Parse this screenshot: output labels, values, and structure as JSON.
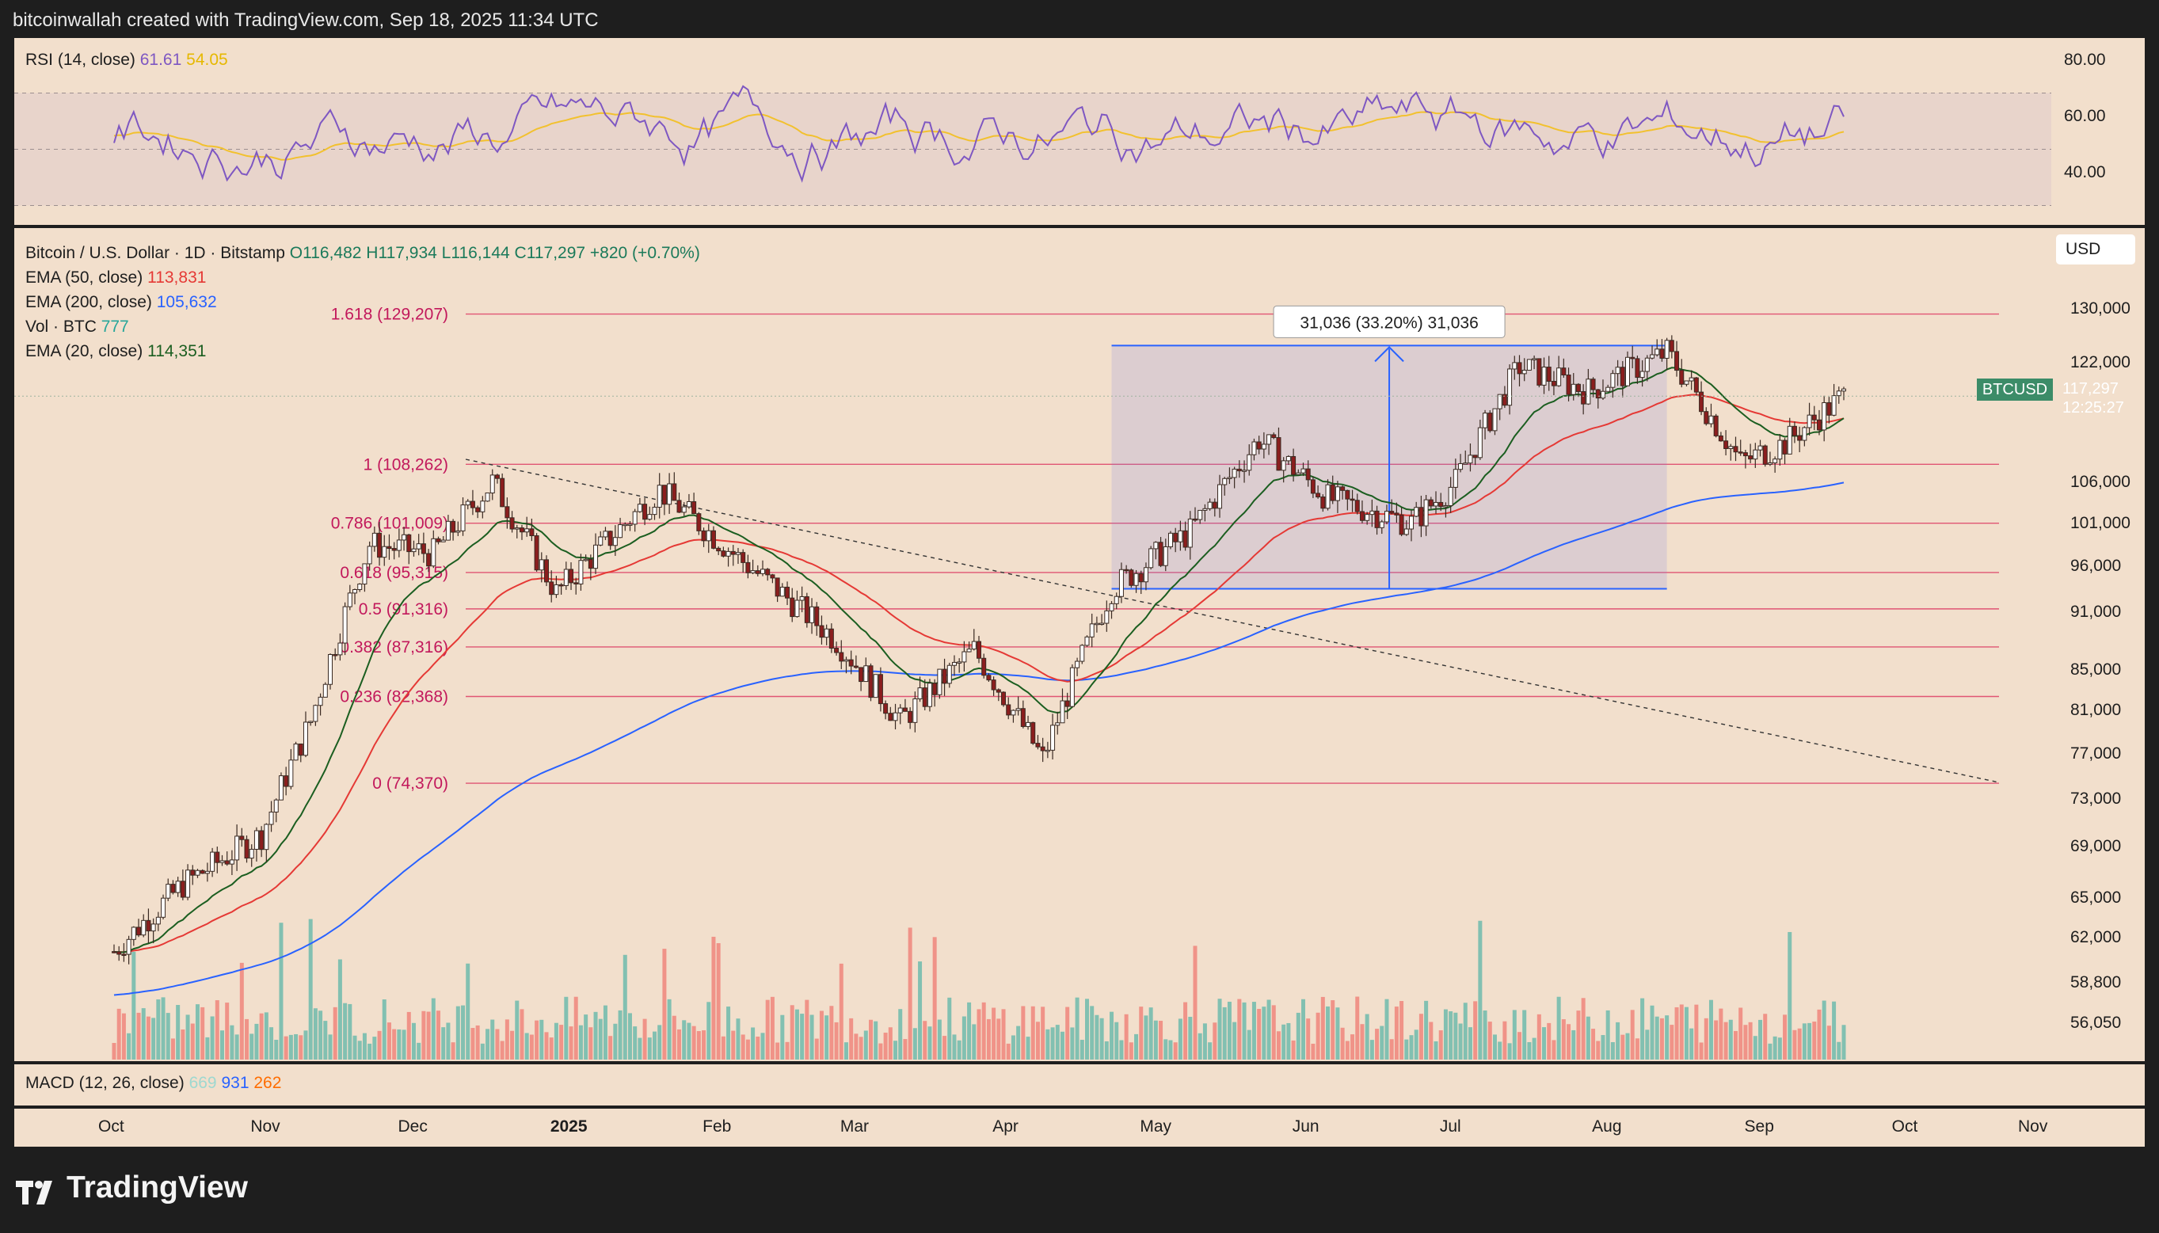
{
  "header": {
    "text": "bitcoinwallah created with TradingView.com, Sep 18, 2025 11:34 UTC"
  },
  "rsi": {
    "title": "RSI (14, close)",
    "value": "61.61",
    "ma_value": "54.05",
    "ticks": [
      "80.00",
      "60.00",
      "40.00"
    ]
  },
  "legend": {
    "symbol": "Bitcoin / U.S. Dollar · 1D · Bitstamp",
    "open": "O116,482",
    "high": "H117,934",
    "low": "L116,144",
    "close": "C117,297",
    "change": "+820 (+0.70%)",
    "ema50_label": "EMA (50, close)",
    "ema50_value": "113,831",
    "ema200_label": "EMA (200, close)",
    "ema200_value": "105,632",
    "vol_label": "Vol · BTC",
    "vol_value": "777",
    "ema20_label": "EMA (20, close)",
    "ema20_value": "114,351"
  },
  "currency_button": "USD",
  "price_tag": {
    "symbol": "BTCUSD",
    "price": "117,297",
    "countdown": "12:25:27"
  },
  "measure_label": "31,036 (33.20%) 31,036",
  "macd": {
    "title": "MACD (12, 26, close)",
    "v1": "669",
    "v2": "931",
    "v3": "262"
  },
  "time_axis": [
    "Oct",
    "Nov",
    "Dec",
    "2025",
    "Feb",
    "Mar",
    "Apr",
    "May",
    "Jun",
    "Jul",
    "Aug",
    "Sep",
    "Oct",
    "Nov"
  ],
  "logo_text": "TradingView",
  "colors": {
    "background": "#f2dfcc",
    "ema20": "#1b5e20",
    "ema50": "#e53935",
    "ema200": "#2962ff",
    "rsi": "#7e57c2",
    "rsi_ma": "#f2c12e",
    "up": "#26a69a",
    "down": "#ef5350",
    "fib": "#e05573"
  },
  "chart_data": {
    "type": "candlestick",
    "y_axis_ticks": [
      "130,000",
      "122,000",
      "106,000",
      "101,000",
      "96,000",
      "91,000",
      "85,000",
      "81,000",
      "77,000",
      "73,000",
      "69,000",
      "65,000",
      "62,000",
      "58,800",
      "56,050"
    ],
    "ylim": [
      54000,
      136000
    ],
    "fib_levels": [
      {
        "label": "1.618 (129,207)",
        "value": 129207
      },
      {
        "label": "1 (108,262)",
        "value": 108262
      },
      {
        "label": "0.786 (101,009)",
        "value": 101009
      },
      {
        "label": "0.618 (95,315)",
        "value": 95315
      },
      {
        "label": "0.5 (91,316)",
        "value": 91316
      },
      {
        "label": "0.382 (87,316)",
        "value": 87316
      },
      {
        "label": "0.236 (82,368)",
        "value": 82368
      },
      {
        "label": "0 (74,370)",
        "value": 74370
      }
    ],
    "measure_range": {
      "low": 93500,
      "high": 124500
    },
    "close_series": [
      {
        "x": "2024-10-01",
        "y": 61000
      },
      {
        "x": "2024-10-15",
        "y": 66000
      },
      {
        "x": "2024-10-31",
        "y": 70000
      },
      {
        "x": "2024-11-10",
        "y": 80000
      },
      {
        "x": "2024-11-22",
        "y": 98500
      },
      {
        "x": "2024-12-05",
        "y": 97500
      },
      {
        "x": "2024-12-17",
        "y": 106000
      },
      {
        "x": "2024-12-30",
        "y": 93000
      },
      {
        "x": "2025-01-20",
        "y": 105000
      },
      {
        "x": "2025-02-05",
        "y": 97000
      },
      {
        "x": "2025-02-25",
        "y": 88000
      },
      {
        "x": "2025-03-10",
        "y": 80000
      },
      {
        "x": "2025-03-25",
        "y": 87000
      },
      {
        "x": "2025-04-08",
        "y": 76500
      },
      {
        "x": "2025-04-22",
        "y": 93500
      },
      {
        "x": "2025-05-08",
        "y": 100000
      },
      {
        "x": "2025-05-22",
        "y": 111500
      },
      {
        "x": "2025-06-05",
        "y": 104000
      },
      {
        "x": "2025-06-22",
        "y": 101000
      },
      {
        "x": "2025-07-01",
        "y": 106000
      },
      {
        "x": "2025-07-14",
        "y": 121500
      },
      {
        "x": "2025-07-28",
        "y": 118000
      },
      {
        "x": "2025-08-13",
        "y": 123500
      },
      {
        "x": "2025-08-28",
        "y": 108500
      },
      {
        "x": "2025-09-06",
        "y": 111000
      },
      {
        "x": "2025-09-18",
        "y": 117297
      }
    ]
  }
}
